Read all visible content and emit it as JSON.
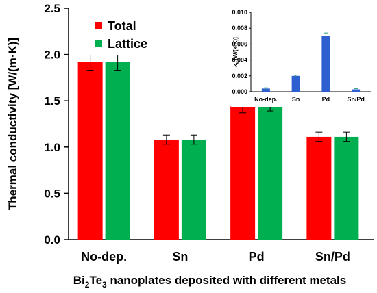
{
  "chart_data": [
    {
      "type": "bar",
      "categories": [
        "No-dep.",
        "Sn",
        "Pd",
        "Sn/Pd"
      ],
      "series": [
        {
          "name": "Total",
          "values": [
            1.92,
            1.08,
            1.44,
            1.11
          ],
          "errors": [
            0.09,
            0.05,
            0.07,
            0.05
          ],
          "color": "#ff0000"
        },
        {
          "name": "Lattice",
          "values": [
            1.92,
            1.08,
            1.44,
            1.11
          ],
          "errors": [
            0.09,
            0.05,
            0.05,
            0.05
          ],
          "color": "#00b050"
        }
      ],
      "ylim": [
        0,
        2.5
      ],
      "yticks": [
        "0.0",
        "0.5",
        "1.0",
        "1.5",
        "2.0",
        "2.5"
      ],
      "ytick_values": [
        0,
        0.5,
        1.0,
        1.5,
        2.0,
        2.5
      ],
      "ylabel": "Thermal conductivity [W/(m·K)]",
      "xlabel_main": "Bi",
      "xlabel_sub1": "2",
      "xlabel_mid": "Te",
      "xlabel_sub2": "3",
      "xlabel_rest": " nanoplates deposited with different metals",
      "legend_position": "top-left"
    },
    {
      "type": "bar",
      "categories": [
        "No-dep.",
        "Sn",
        "Pd",
        "Sn/Pd"
      ],
      "series": [
        {
          "values": [
            0.0004,
            0.002,
            0.007,
            0.0003
          ],
          "errors": [
            0.0001,
            0.0001,
            0.0004,
            0.0001
          ],
          "color": "#2e5fd1"
        }
      ],
      "ylim": [
        0,
        0.01
      ],
      "yticks": [
        "0.000",
        "0.002",
        "0.004",
        "0.006",
        "0.008",
        "0.010"
      ],
      "ytick_values": [
        0,
        0.002,
        0.004,
        0.006,
        0.008,
        0.01
      ],
      "ylabel_symbol": "κ",
      "ylabel_sub": "e",
      "ylabel_unit": " [W/(k·K)]",
      "legend_position": "none"
    }
  ]
}
